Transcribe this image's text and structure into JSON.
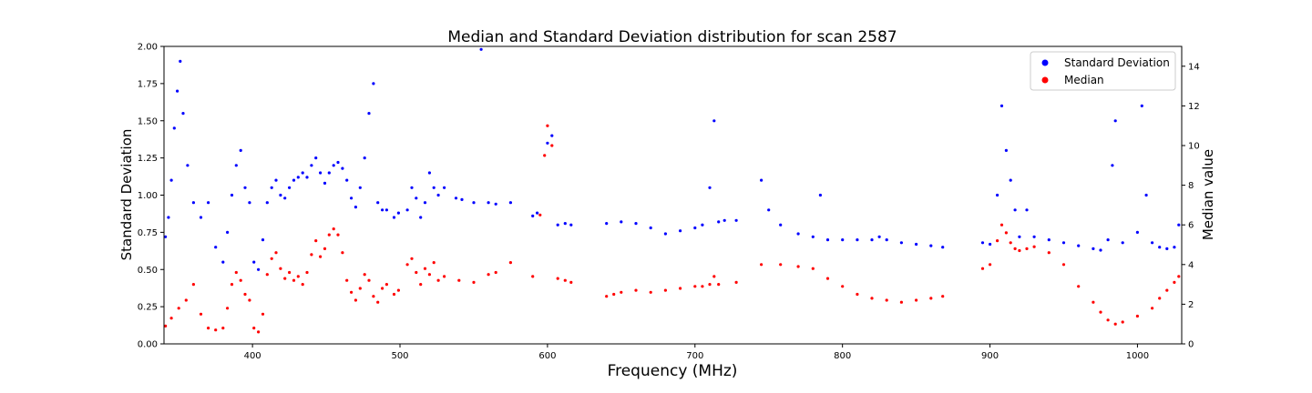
{
  "chart_data": {
    "type": "scatter",
    "title": "Median and Standard Deviation distribution for scan 2587",
    "xlabel": "Frequency (MHz)",
    "ylabel_left": "Standard Deviation",
    "ylabel_right": "Median value",
    "xlim": [
      340,
      1030
    ],
    "ylim_left": [
      0,
      2
    ],
    "ylim_right": [
      0,
      15
    ],
    "x_ticks": [
      400,
      500,
      600,
      700,
      800,
      900,
      1000
    ],
    "y_ticks_left": [
      "0.00",
      "0.25",
      "0.50",
      "0.75",
      "1.00",
      "1.25",
      "1.50",
      "1.75",
      "2.00"
    ],
    "y_ticks_right": [
      "0",
      "2",
      "4",
      "6",
      "8",
      "10",
      "12",
      "14"
    ],
    "legend_position": "top-right",
    "grid": false,
    "series": [
      {
        "name": "Standard Deviation",
        "axis": "left",
        "color": "#0000ff",
        "points": [
          [
            341,
            0.72
          ],
          [
            343,
            0.85
          ],
          [
            345,
            1.1
          ],
          [
            347,
            1.45
          ],
          [
            349,
            1.7
          ],
          [
            351,
            1.9
          ],
          [
            353,
            1.55
          ],
          [
            356,
            1.2
          ],
          [
            360,
            0.95
          ],
          [
            365,
            0.85
          ],
          [
            370,
            0.95
          ],
          [
            375,
            0.65
          ],
          [
            380,
            0.55
          ],
          [
            383,
            0.75
          ],
          [
            386,
            1.0
          ],
          [
            389,
            1.2
          ],
          [
            392,
            1.3
          ],
          [
            395,
            1.05
          ],
          [
            398,
            0.95
          ],
          [
            401,
            0.55
          ],
          [
            404,
            0.5
          ],
          [
            407,
            0.7
          ],
          [
            410,
            0.95
          ],
          [
            413,
            1.05
          ],
          [
            416,
            1.1
          ],
          [
            419,
            1.0
          ],
          [
            422,
            0.98
          ],
          [
            425,
            1.05
          ],
          [
            428,
            1.1
          ],
          [
            431,
            1.12
          ],
          [
            434,
            1.15
          ],
          [
            437,
            1.12
          ],
          [
            440,
            1.2
          ],
          [
            443,
            1.25
          ],
          [
            446,
            1.15
          ],
          [
            449,
            1.08
          ],
          [
            452,
            1.15
          ],
          [
            455,
            1.2
          ],
          [
            458,
            1.22
          ],
          [
            461,
            1.18
          ],
          [
            464,
            1.1
          ],
          [
            467,
            0.98
          ],
          [
            470,
            0.92
          ],
          [
            473,
            1.05
          ],
          [
            476,
            1.25
          ],
          [
            479,
            1.55
          ],
          [
            482,
            1.75
          ],
          [
            485,
            0.95
          ],
          [
            488,
            0.9
          ],
          [
            491,
            0.9
          ],
          [
            496,
            0.85
          ],
          [
            499,
            0.88
          ],
          [
            505,
            0.9
          ],
          [
            508,
            1.05
          ],
          [
            511,
            0.98
          ],
          [
            514,
            0.85
          ],
          [
            517,
            0.95
          ],
          [
            520,
            1.15
          ],
          [
            523,
            1.05
          ],
          [
            526,
            1.0
          ],
          [
            530,
            1.05
          ],
          [
            538,
            0.98
          ],
          [
            542,
            0.97
          ],
          [
            550,
            0.95
          ],
          [
            555,
            1.98
          ],
          [
            560,
            0.95
          ],
          [
            565,
            0.94
          ],
          [
            575,
            0.95
          ],
          [
            590,
            0.86
          ],
          [
            593,
            0.88
          ],
          [
            600,
            1.35
          ],
          [
            603,
            1.4
          ],
          [
            607,
            0.8
          ],
          [
            612,
            0.81
          ],
          [
            616,
            0.8
          ],
          [
            640,
            0.81
          ],
          [
            650,
            0.82
          ],
          [
            660,
            0.81
          ],
          [
            670,
            0.78
          ],
          [
            680,
            0.74
          ],
          [
            690,
            0.76
          ],
          [
            700,
            0.78
          ],
          [
            705,
            0.8
          ],
          [
            710,
            1.05
          ],
          [
            713,
            1.5
          ],
          [
            716,
            0.82
          ],
          [
            720,
            0.83
          ],
          [
            728,
            0.83
          ],
          [
            745,
            1.1
          ],
          [
            750,
            0.9
          ],
          [
            758,
            0.8
          ],
          [
            770,
            0.74
          ],
          [
            780,
            0.72
          ],
          [
            785,
            1.0
          ],
          [
            790,
            0.7
          ],
          [
            800,
            0.7
          ],
          [
            810,
            0.7
          ],
          [
            820,
            0.7
          ],
          [
            825,
            0.72
          ],
          [
            830,
            0.7
          ],
          [
            840,
            0.68
          ],
          [
            850,
            0.67
          ],
          [
            860,
            0.66
          ],
          [
            868,
            0.65
          ],
          [
            895,
            0.68
          ],
          [
            900,
            0.67
          ],
          [
            905,
            1.0
          ],
          [
            908,
            1.6
          ],
          [
            911,
            1.3
          ],
          [
            914,
            1.1
          ],
          [
            917,
            0.9
          ],
          [
            920,
            0.72
          ],
          [
            925,
            0.9
          ],
          [
            930,
            0.72
          ],
          [
            940,
            0.7
          ],
          [
            950,
            0.68
          ],
          [
            960,
            0.66
          ],
          [
            970,
            0.64
          ],
          [
            975,
            0.63
          ],
          [
            980,
            0.7
          ],
          [
            983,
            1.2
          ],
          [
            985,
            1.5
          ],
          [
            990,
            0.68
          ],
          [
            1000,
            0.75
          ],
          [
            1003,
            1.6
          ],
          [
            1006,
            1.0
          ],
          [
            1010,
            0.68
          ],
          [
            1015,
            0.65
          ],
          [
            1020,
            0.64
          ],
          [
            1025,
            0.65
          ],
          [
            1028,
            0.8
          ]
        ]
      },
      {
        "name": "Median",
        "axis": "right",
        "color": "#ff0000",
        "points": [
          [
            341,
            0.9
          ],
          [
            345,
            1.3
          ],
          [
            350,
            1.8
          ],
          [
            355,
            2.2
          ],
          [
            360,
            3.0
          ],
          [
            365,
            1.5
          ],
          [
            370,
            0.8
          ],
          [
            375,
            0.7
          ],
          [
            380,
            0.8
          ],
          [
            383,
            1.8
          ],
          [
            386,
            3.0
          ],
          [
            389,
            3.6
          ],
          [
            392,
            3.2
          ],
          [
            395,
            2.5
          ],
          [
            398,
            2.2
          ],
          [
            401,
            0.8
          ],
          [
            404,
            0.6
          ],
          [
            407,
            1.5
          ],
          [
            410,
            3.5
          ],
          [
            413,
            4.3
          ],
          [
            416,
            4.6
          ],
          [
            419,
            3.8
          ],
          [
            422,
            3.3
          ],
          [
            425,
            3.6
          ],
          [
            428,
            3.2
          ],
          [
            431,
            3.4
          ],
          [
            434,
            3.0
          ],
          [
            437,
            3.6
          ],
          [
            440,
            4.5
          ],
          [
            443,
            5.2
          ],
          [
            446,
            4.4
          ],
          [
            449,
            4.8
          ],
          [
            452,
            5.5
          ],
          [
            455,
            5.8
          ],
          [
            458,
            5.5
          ],
          [
            461,
            4.6
          ],
          [
            464,
            3.2
          ],
          [
            467,
            2.6
          ],
          [
            470,
            2.2
          ],
          [
            473,
            2.8
          ],
          [
            476,
            3.5
          ],
          [
            479,
            3.2
          ],
          [
            482,
            2.4
          ],
          [
            485,
            2.1
          ],
          [
            488,
            2.8
          ],
          [
            491,
            3.0
          ],
          [
            496,
            2.5
          ],
          [
            499,
            2.7
          ],
          [
            505,
            4.0
          ],
          [
            508,
            4.3
          ],
          [
            511,
            3.6
          ],
          [
            514,
            3.0
          ],
          [
            517,
            3.8
          ],
          [
            520,
            3.5
          ],
          [
            523,
            4.1
          ],
          [
            526,
            3.2
          ],
          [
            530,
            3.4
          ],
          [
            540,
            3.2
          ],
          [
            550,
            3.1
          ],
          [
            560,
            3.5
          ],
          [
            565,
            3.6
          ],
          [
            575,
            4.1
          ],
          [
            590,
            3.4
          ],
          [
            595,
            6.5
          ],
          [
            598,
            9.5
          ],
          [
            600,
            11.0
          ],
          [
            603,
            10.0
          ],
          [
            607,
            3.3
          ],
          [
            612,
            3.2
          ],
          [
            616,
            3.1
          ],
          [
            640,
            2.4
          ],
          [
            645,
            2.5
          ],
          [
            650,
            2.6
          ],
          [
            660,
            2.7
          ],
          [
            670,
            2.6
          ],
          [
            680,
            2.7
          ],
          [
            690,
            2.8
          ],
          [
            700,
            2.9
          ],
          [
            705,
            2.9
          ],
          [
            710,
            3.0
          ],
          [
            713,
            3.4
          ],
          [
            716,
            3.0
          ],
          [
            728,
            3.1
          ],
          [
            745,
            4.0
          ],
          [
            758,
            4.0
          ],
          [
            770,
            3.9
          ],
          [
            780,
            3.8
          ],
          [
            790,
            3.3
          ],
          [
            800,
            2.9
          ],
          [
            810,
            2.5
          ],
          [
            820,
            2.3
          ],
          [
            830,
            2.2
          ],
          [
            840,
            2.1
          ],
          [
            850,
            2.2
          ],
          [
            860,
            2.3
          ],
          [
            868,
            2.4
          ],
          [
            895,
            3.8
          ],
          [
            900,
            4.0
          ],
          [
            905,
            5.2
          ],
          [
            908,
            6.0
          ],
          [
            911,
            5.6
          ],
          [
            914,
            5.1
          ],
          [
            917,
            4.8
          ],
          [
            920,
            4.7
          ],
          [
            925,
            4.8
          ],
          [
            930,
            4.9
          ],
          [
            940,
            4.6
          ],
          [
            950,
            4.0
          ],
          [
            960,
            2.9
          ],
          [
            970,
            2.1
          ],
          [
            975,
            1.6
          ],
          [
            980,
            1.2
          ],
          [
            985,
            1.0
          ],
          [
            990,
            1.1
          ],
          [
            1000,
            1.4
          ],
          [
            1010,
            1.8
          ],
          [
            1015,
            2.3
          ],
          [
            1020,
            2.7
          ],
          [
            1025,
            3.1
          ],
          [
            1028,
            3.4
          ]
        ]
      }
    ]
  }
}
